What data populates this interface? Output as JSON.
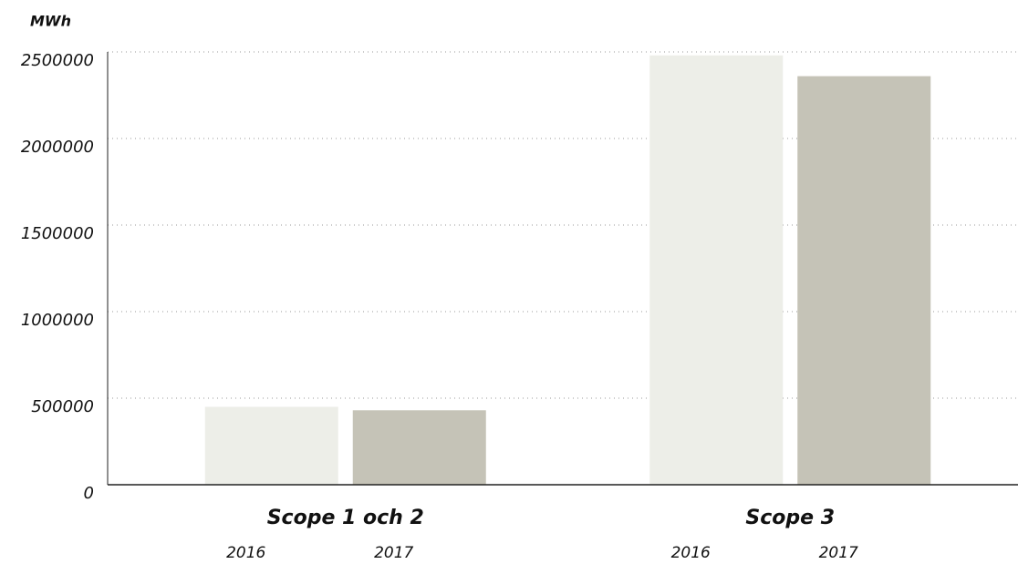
{
  "chart_data": {
    "type": "bar",
    "y_label": "MWh",
    "categories": [
      "Scope 1 och 2",
      "Scope 3"
    ],
    "series": [
      {
        "name": "2016",
        "color": "#edeee8",
        "values": [
          450000,
          2480000
        ]
      },
      {
        "name": "2017",
        "color": "#c5c3b7",
        "values": [
          430000,
          2360000
        ]
      }
    ],
    "ylim": [
      0,
      2500000
    ],
    "yticks": [
      0,
      500000,
      1000000,
      1500000,
      2000000,
      2500000
    ],
    "grid": true
  }
}
